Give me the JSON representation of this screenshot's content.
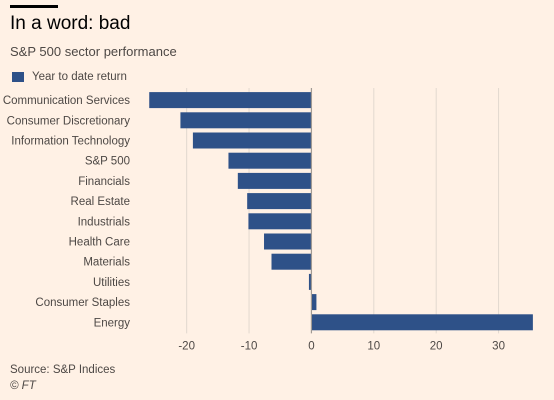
{
  "header": {
    "title": "In a word: bad",
    "subtitle": "S&P 500 sector performance"
  },
  "footer": {
    "source": "Source: S&P Indices",
    "copyright": "© FT"
  },
  "colors": {
    "background": "#fff1e5",
    "bar": "#2e5188",
    "grid": "#e2d8cf",
    "zero_line": "#a09a94"
  },
  "chart_data": {
    "type": "bar",
    "orientation": "horizontal",
    "categories": [
      "Communication Services",
      "Consumer Discretionary",
      "Information Technology",
      "S&P 500",
      "Financials",
      "Real Estate",
      "Industrials",
      "Health Care",
      "Materials",
      "Utilities",
      "Consumer Staples",
      "Energy"
    ],
    "series": [
      {
        "name": "Year to date return",
        "values": [
          -26.0,
          -21.0,
          -19.0,
          -13.3,
          -11.8,
          -10.3,
          -10.1,
          -7.6,
          -6.4,
          -0.4,
          0.8,
          35.5
        ]
      }
    ],
    "xlim": [
      -27,
      36
    ],
    "xticks": [
      -20,
      -10,
      0,
      10,
      20,
      30
    ],
    "grid": "vertical",
    "legend_position": "top-left",
    "xlabel": "",
    "ylabel": ""
  }
}
